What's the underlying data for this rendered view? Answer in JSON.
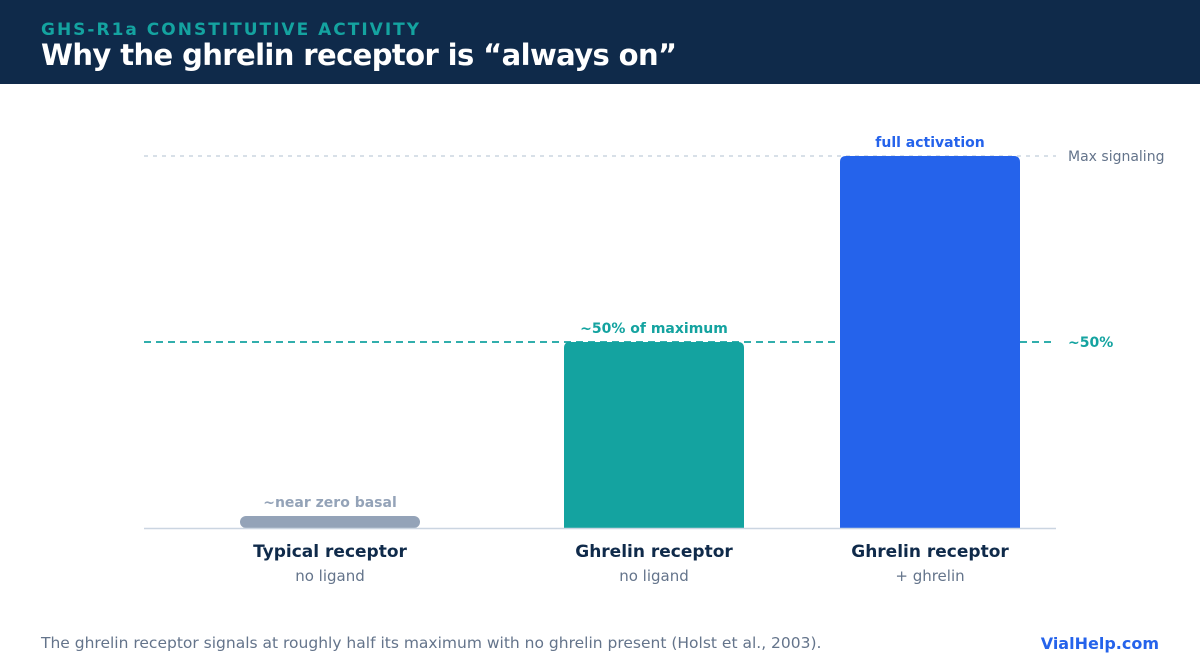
{
  "header": {
    "eyebrow": "GHS-R1a CONSTITUTIVE ACTIVITY",
    "title": "Why the ghrelin receptor is “always on”"
  },
  "chart_data": {
    "type": "bar",
    "ylim": [
      0,
      100
    ],
    "categories": [
      "Typical receptor",
      "Ghrelin receptor",
      "Ghrelin receptor"
    ],
    "subcategories": [
      "no ligand",
      "no ligand",
      "+ ghrelin"
    ],
    "values": [
      1,
      50,
      100
    ],
    "annotations": [
      "~near zero basal",
      "~50% of maximum",
      "full activation"
    ],
    "colors": [
      "#94a3b8",
      "#14a3a0",
      "#2563eb"
    ],
    "reference_lines": [
      {
        "label": "Max signaling",
        "value": 100,
        "color": "#cbd5e1"
      },
      {
        "label": "~50%",
        "value": 50,
        "color": "#14a3a0"
      }
    ],
    "grid": false,
    "legend": "none"
  },
  "footer": {
    "note": "The ghrelin receptor signals at roughly half its maximum with no ghrelin present (Holst et al., 2003).",
    "brand": "VialHelp.com"
  }
}
